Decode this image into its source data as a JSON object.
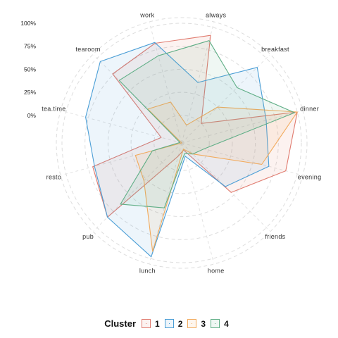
{
  "chart_data": {
    "type": "radar",
    "title": "",
    "axes": [
      "always",
      "breakfast",
      "dinner",
      "evening",
      "friends",
      "home",
      "lunch",
      "pub",
      "resto",
      "tea.time",
      "tearoom",
      "work"
    ],
    "tick_labels": [
      "0%",
      "25%",
      "50%",
      "75%",
      "100%"
    ],
    "tick_values": [
      0,
      25,
      50,
      75,
      100
    ],
    "range": [
      -30,
      100
    ],
    "grid": true,
    "legend": {
      "title": "Cluster",
      "position": "bottom"
    },
    "series": [
      {
        "name": "1",
        "color": "#e07b6f",
        "values": [
          91,
          0,
          100,
          87,
          46,
          -22,
          -15,
          84,
          70,
          -7,
          76,
          82
        ]
      },
      {
        "name": "2",
        "color": "#4a9ed6",
        "values": [
          38,
          86,
          65,
          68,
          37,
          -15,
          98,
          84,
          68,
          78,
          95,
          83
        ]
      },
      {
        "name": "3",
        "color": "#f2aa5c",
        "values": [
          -10,
          25,
          100,
          60,
          -13,
          -23,
          92,
          28,
          22,
          -30,
          22,
          16
        ]
      },
      {
        "name": "4",
        "color": "#5fae86",
        "values": [
          85,
          55,
          97,
          -5,
          -13,
          -18,
          43,
          64,
          3,
          -28,
          66,
          68
        ]
      }
    ]
  }
}
